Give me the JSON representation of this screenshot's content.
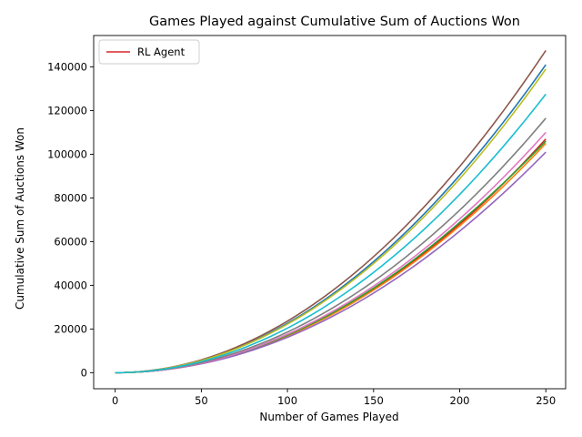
{
  "chart_data": {
    "type": "line",
    "title": "Games Played against Cumulative Sum of Auctions Won",
    "xlabel": "Number of Games Played",
    "ylabel": "Cumulative Sum of Auctions Won",
    "xlim": [
      -12.5,
      261.5
    ],
    "ylim": [
      -7350,
      154350
    ],
    "xticks": [
      0,
      50,
      100,
      150,
      200,
      250
    ],
    "yticks": [
      0,
      20000,
      40000,
      60000,
      80000,
      100000,
      120000,
      140000
    ],
    "grid": false,
    "legend": {
      "position": "upper-left",
      "entries": [
        "RL Agent"
      ]
    },
    "series": [
      {
        "name": "RL Agent",
        "color": "#d62728",
        "x": [
          0,
          50,
          100,
          150,
          200,
          250
        ],
        "y": [
          0,
          4250,
          17000,
          38250,
          68000,
          107000
        ]
      },
      {
        "color": "#1f77b4",
        "x": [
          0,
          50,
          100,
          150,
          200,
          250
        ],
        "y": [
          0,
          5650,
          22600,
          50850,
          90400,
          141000
        ]
      },
      {
        "color": "#ff7f0e",
        "x": [
          0,
          50,
          100,
          150,
          200,
          250
        ],
        "y": [
          0,
          4200,
          16800,
          37800,
          67200,
          105000
        ]
      },
      {
        "color": "#2ca02c",
        "x": [
          0,
          50,
          100,
          150,
          200,
          250
        ],
        "y": [
          0,
          4300,
          17200,
          38700,
          68800,
          106000
        ]
      },
      {
        "color": "#9467bd",
        "x": [
          0,
          50,
          100,
          150,
          200,
          250
        ],
        "y": [
          0,
          4050,
          16200,
          36450,
          64800,
          101000
        ]
      },
      {
        "color": "#8c564b",
        "x": [
          0,
          50,
          100,
          150,
          200,
          250
        ],
        "y": [
          0,
          5900,
          23600,
          53100,
          94400,
          147500
        ]
      },
      {
        "color": "#e377c2",
        "x": [
          0,
          50,
          100,
          150,
          200,
          250
        ],
        "y": [
          0,
          4400,
          17600,
          39600,
          70400,
          110000
        ]
      },
      {
        "color": "#7f7f7f",
        "x": [
          0,
          50,
          100,
          150,
          200,
          250
        ],
        "y": [
          0,
          4650,
          18600,
          41850,
          74400,
          116500
        ]
      },
      {
        "color": "#bcbd22",
        "x": [
          0,
          50,
          100,
          150,
          200,
          250
        ],
        "y": [
          0,
          5550,
          22200,
          49950,
          88800,
          139000
        ]
      },
      {
        "color": "#17becf",
        "x": [
          0,
          50,
          100,
          150,
          200,
          250
        ],
        "y": [
          0,
          5100,
          20400,
          45900,
          81600,
          127500
        ]
      }
    ]
  }
}
